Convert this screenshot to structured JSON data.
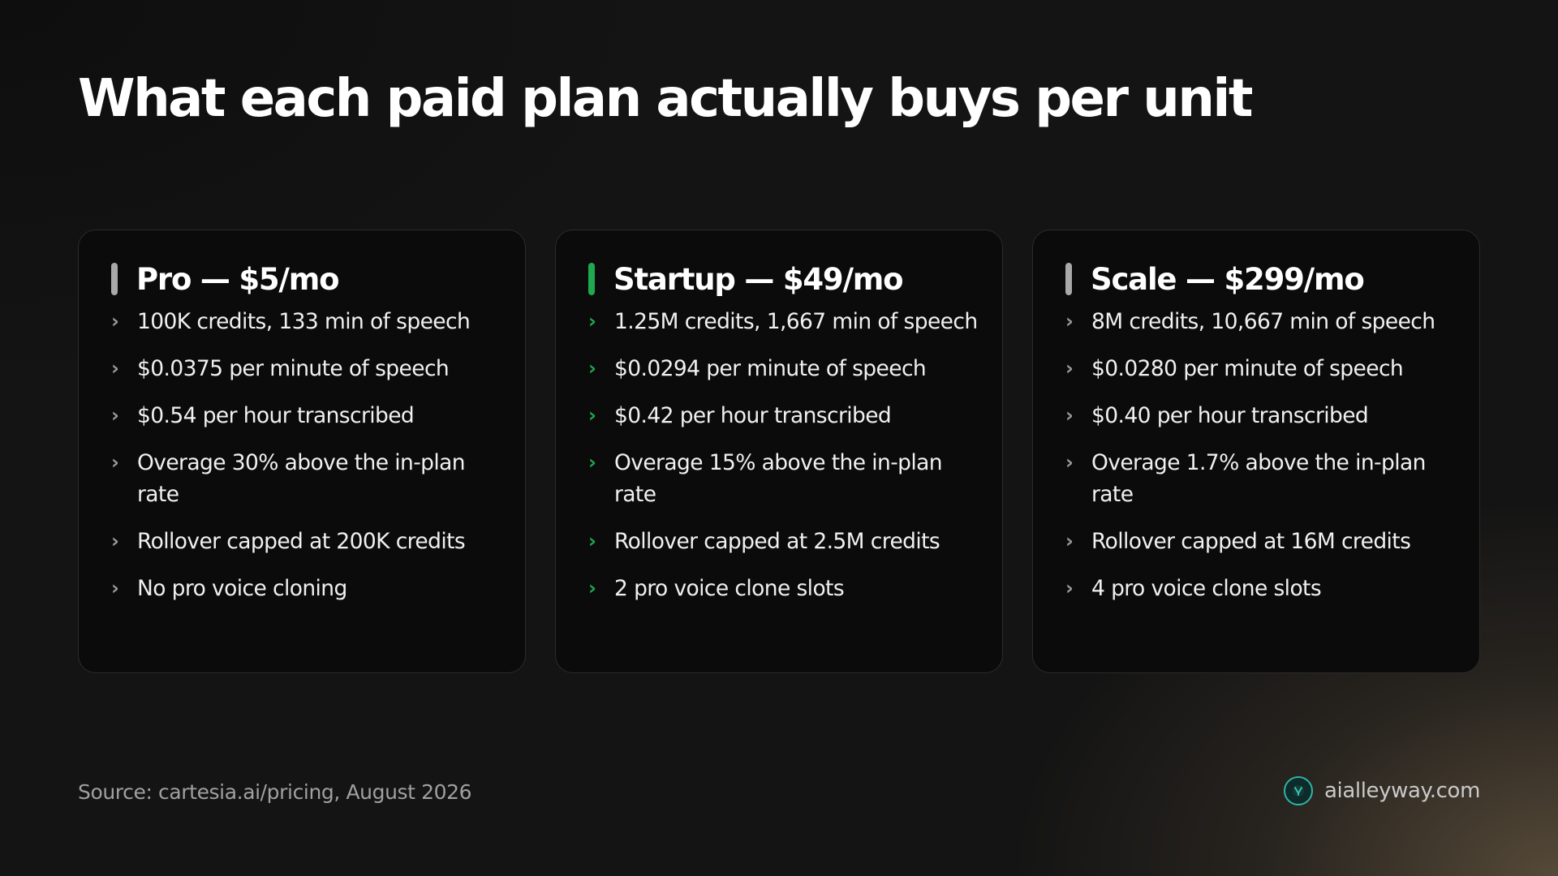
{
  "title": "What each paid plan actually buys per unit",
  "accent_colors": {
    "neutral": "#a9a9a9",
    "highlight": "#1ea84f"
  },
  "plans": [
    {
      "name": "Pro — $5/mo",
      "highlighted": false,
      "features": [
        "100K credits, 133 min of speech",
        "$0.0375 per minute of speech",
        "$0.54 per hour transcribed",
        "Overage 30% above the in-plan rate",
        "Rollover capped at 200K credits",
        "No pro voice cloning"
      ]
    },
    {
      "name": "Startup — $49/mo",
      "highlighted": true,
      "features": [
        "1.25M credits, 1,667 min of speech",
        "$0.0294 per minute of speech",
        "$0.42 per hour transcribed",
        "Overage 15% above the in-plan rate",
        "Rollover capped at 2.5M credits",
        "2 pro voice clone slots"
      ]
    },
    {
      "name": "Scale — $299/mo",
      "highlighted": false,
      "features": [
        "8M credits, 10,667 min of speech",
        "$0.0280 per minute of speech",
        "$0.40 per hour transcribed",
        "Overage 1.7% above the in-plan rate",
        "Rollover capped at 16M credits",
        "4 pro voice clone slots"
      ]
    }
  ],
  "footer": {
    "source": "Source: cartesia.ai/pricing, August 2026",
    "brand_name": "aialleyway.com",
    "brand_icon": "aialleyway-logo-icon"
  }
}
